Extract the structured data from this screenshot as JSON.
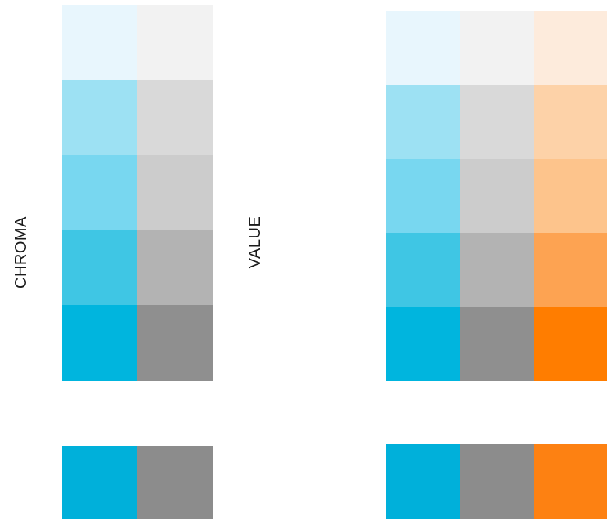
{
  "labels": {
    "left": "CHROMA",
    "right": "VALUE"
  },
  "left_panel": {
    "scale_rows": [
      [
        "#e8f6fd",
        "#f2f2f2"
      ],
      [
        "#9de1f3",
        "#d9d9d9"
      ],
      [
        "#78d7f0",
        "#cccccc"
      ],
      [
        "#3fc6e4",
        "#b3b3b3"
      ],
      [
        "#00b5de",
        "#8f8f8f"
      ]
    ],
    "base_row": [
      "#00b0da",
      "#8c8c8c"
    ]
  },
  "right_panel": {
    "scale_rows": [
      [
        "#e8f6fd",
        "#f2f2f2",
        "#fdebdc"
      ],
      [
        "#9de1f3",
        "#d9d9d9",
        "#fdd2a8"
      ],
      [
        "#78d7f0",
        "#cccccc",
        "#fdc48c"
      ],
      [
        "#3fc6e4",
        "#b3b3b3",
        "#fda352"
      ],
      [
        "#00b5de",
        "#8f8f8f",
        "#ff7d00"
      ]
    ],
    "base_row": [
      "#00b0da",
      "#8c8c8c",
      "#fd8112"
    ]
  }
}
